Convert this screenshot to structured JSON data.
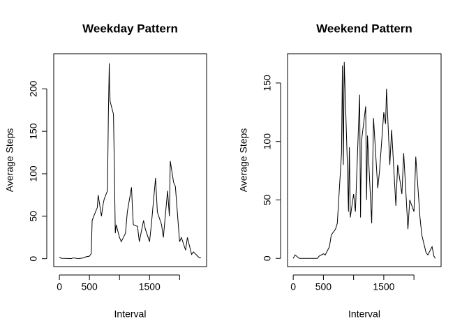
{
  "chart_data": [
    {
      "type": "line",
      "title": "Weekday Pattern",
      "x_label": "Interval",
      "y_label": "Average Steps",
      "xlim": [
        -94.2,
        2449.2
      ],
      "ylim": [
        -9.3,
        241.3
      ],
      "xticks": [
        0,
        500,
        {
          "value": 1000,
          "label": null
        },
        1500,
        {
          "value": 2000,
          "label": null
        }
      ],
      "yticks": [
        0,
        50,
        100,
        150,
        200
      ],
      "series": [
        {
          "name": null,
          "color": "#000000",
          "x": [
            0,
            30,
            100,
            130,
            200,
            230,
            300,
            330,
            400,
            430,
            500,
            530,
            545,
            600,
            630,
            645,
            700,
            715,
            730,
            745,
            800,
            815,
            830,
            835,
            845,
            900,
            915,
            930,
            945,
            1000,
            1030,
            1100,
            1130,
            1200,
            1215,
            1230,
            1300,
            1330,
            1400,
            1430,
            1500,
            1530,
            1600,
            1630,
            1700,
            1730,
            1800,
            1830,
            1845,
            1900,
            1930,
            2000,
            2030,
            2100,
            2130,
            2200,
            2230,
            2300,
            2330,
            2355
          ],
          "values": [
            2,
            0.5,
            0.4,
            0.3,
            0.1,
            1,
            0.3,
            0.2,
            1,
            2,
            3,
            6,
            45,
            55,
            60,
            75,
            50,
            58,
            65,
            70,
            80,
            170,
            230,
            200,
            185,
            170,
            105,
            30,
            40,
            25,
            20,
            30,
            55,
            84,
            60,
            40,
            38,
            20,
            45,
            35,
            20,
            40,
            95,
            55,
            40,
            25,
            80,
            50,
            115,
            90,
            85,
            20,
            25,
            10,
            25,
            5,
            8,
            3,
            1,
            1
          ]
        }
      ]
    },
    {
      "type": "line",
      "title": "Weekend Pattern",
      "x_label": "Interval",
      "y_label": "Average Steps",
      "xlim": [
        -94.2,
        2449.2
      ],
      "ylim": [
        -7,
        175
      ],
      "xticks": [
        0,
        500,
        {
          "value": 1000,
          "label": null
        },
        1500,
        {
          "value": 2000,
          "label": null
        }
      ],
      "yticks": [
        0,
        50,
        100,
        150
      ],
      "series": [
        {
          "name": null,
          "color": "#000000",
          "x": [
            0,
            30,
            100,
            200,
            300,
            400,
            430,
            500,
            530,
            600,
            630,
            700,
            730,
            800,
            815,
            830,
            845,
            900,
            915,
            930,
            945,
            1000,
            1030,
            1100,
            1115,
            1130,
            1200,
            1215,
            1230,
            1300,
            1330,
            1400,
            1430,
            1500,
            1530,
            1545,
            1600,
            1630,
            1700,
            1730,
            1800,
            1830,
            1900,
            1930,
            2000,
            2030,
            2100,
            2130,
            2200,
            2230,
            2300,
            2330,
            2355
          ],
          "values": [
            0,
            3,
            0,
            0,
            0,
            0,
            2,
            4,
            3,
            10,
            20,
            25,
            30,
            90,
            165,
            80,
            168,
            75,
            40,
            95,
            35,
            55,
            40,
            140,
            35,
            100,
            130,
            50,
            105,
            30,
            120,
            60,
            75,
            125,
            115,
            145,
            80,
            110,
            45,
            80,
            55,
            90,
            25,
            50,
            40,
            87,
            35,
            20,
            5,
            3,
            10,
            2,
            0
          ]
        }
      ]
    }
  ]
}
